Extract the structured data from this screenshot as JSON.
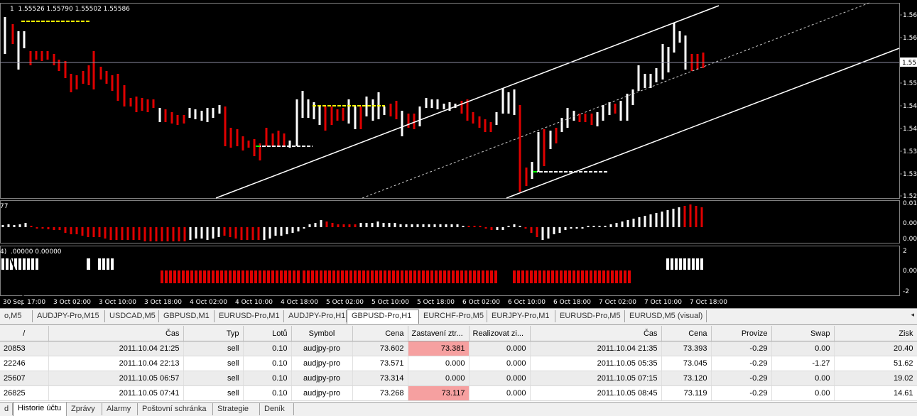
{
  "chart": {
    "info_line": "1  1.55526 1.55790 1.55502 1.55586",
    "osc_label": "77",
    "ind2_label": "4)  .00000 0.00000",
    "price_ticks": [
      "1.56",
      "1.56",
      "1.55",
      "1.55",
      "1.54",
      "1.54",
      "1.53",
      "1.53",
      "1.52"
    ],
    "current_price_label": "1.55",
    "osc_ticks": [
      "0.011",
      "0.00",
      "0.00"
    ],
    "ind2_ticks": [
      "2",
      "0.00",
      "-2"
    ],
    "time_labels": [
      "30 Sep 17:00",
      "3 Oct 02:00",
      "3 Oct 10:00",
      "3 Oct 18:00",
      "4 Oct 02:00",
      "4 Oct 10:00",
      "4 Oct 18:00",
      "5 Oct 02:00",
      "5 Oct 10:00",
      "5 Oct 18:00",
      "6 Oct 02:00",
      "6 Oct 10:00",
      "6 Oct 18:00",
      "7 Oct 02:00",
      "7 Oct 10:00",
      "7 Oct 18:00"
    ],
    "colors": {
      "bull": "#ffffff",
      "bear": "#e00000",
      "background": "#000000",
      "level_yellow": "#ffff00",
      "level_white": "#ffffff",
      "level_green": "#00ff00"
    }
  },
  "chart_tabs": [
    {
      "label": "o,M5",
      "active": false
    },
    {
      "label": "AUDJPY-Pro,M15",
      "active": false
    },
    {
      "label": "USDCAD,M5",
      "active": false
    },
    {
      "label": "GBPUSD,M1",
      "active": false
    },
    {
      "label": "EURUSD-Pro,M1",
      "active": false
    },
    {
      "label": "AUDJPY-Pro,H1",
      "active": false
    },
    {
      "label": "GBPUSD-Pro,H1",
      "active": true
    },
    {
      "label": "EURCHF-Pro,M5",
      "active": false
    },
    {
      "label": "EURJPY-Pro,M1",
      "active": false
    },
    {
      "label": "EURUSD-Pro,M5",
      "active": false
    },
    {
      "label": "EURUSD,M5 (visual)",
      "active": false
    }
  ],
  "tab_scroll": "◂",
  "history": {
    "columns": [
      "/",
      "Čas",
      "Typ",
      "Lotů",
      "Symbol",
      "Cena",
      "Zastavení ztr...",
      "Realizovat zi...",
      "Čas",
      "Cena",
      "Provize",
      "Swap",
      "Zisk"
    ],
    "rows": [
      {
        "ticket": "20853",
        "open_time": "2011.10.04 21:25",
        "type": "sell",
        "lots": "0.10",
        "symbol": "audjpy-pro",
        "open_price": "73.602",
        "sl": "73.381",
        "tp": "0.000",
        "close_time": "2011.10.04 21:35",
        "close_price": "73.393",
        "commission": "-0.29",
        "swap": "0.00",
        "profit": "20.40",
        "sl_highlight": true
      },
      {
        "ticket": "22246",
        "open_time": "2011.10.04 22:13",
        "type": "sell",
        "lots": "0.10",
        "symbol": "audjpy-pro",
        "open_price": "73.571",
        "sl": "0.000",
        "tp": "0.000",
        "close_time": "2011.10.05 05:35",
        "close_price": "73.045",
        "commission": "-0.29",
        "swap": "-1.27",
        "profit": "51.62",
        "sl_highlight": false
      },
      {
        "ticket": "25607",
        "open_time": "2011.10.05 06:57",
        "type": "sell",
        "lots": "0.10",
        "symbol": "audjpy-pro",
        "open_price": "73.314",
        "sl": "0.000",
        "tp": "0.000",
        "close_time": "2011.10.05 07:15",
        "close_price": "73.120",
        "commission": "-0.29",
        "swap": "0.00",
        "profit": "19.02",
        "sl_highlight": false
      },
      {
        "ticket": "26825",
        "open_time": "2011.10.05 07:41",
        "type": "sell",
        "lots": "0.10",
        "symbol": "audjpy-pro",
        "open_price": "73.268",
        "sl": "73.117",
        "tp": "0.000",
        "close_time": "2011.10.05 08:45",
        "close_price": "73.119",
        "commission": "-0.29",
        "swap": "0.00",
        "profit": "14.61",
        "sl_highlight": true
      }
    ]
  },
  "bottom_tabs": [
    {
      "label": "d",
      "active": false
    },
    {
      "label": "Historie účtu",
      "active": true
    },
    {
      "label": "Zprávy",
      "active": false
    },
    {
      "label": "Alarmy",
      "active": false
    },
    {
      "label": "Poštovní schránka",
      "active": false
    },
    {
      "label": "Strategie",
      "active": false
    },
    {
      "label": "Deník",
      "active": false
    }
  ]
}
